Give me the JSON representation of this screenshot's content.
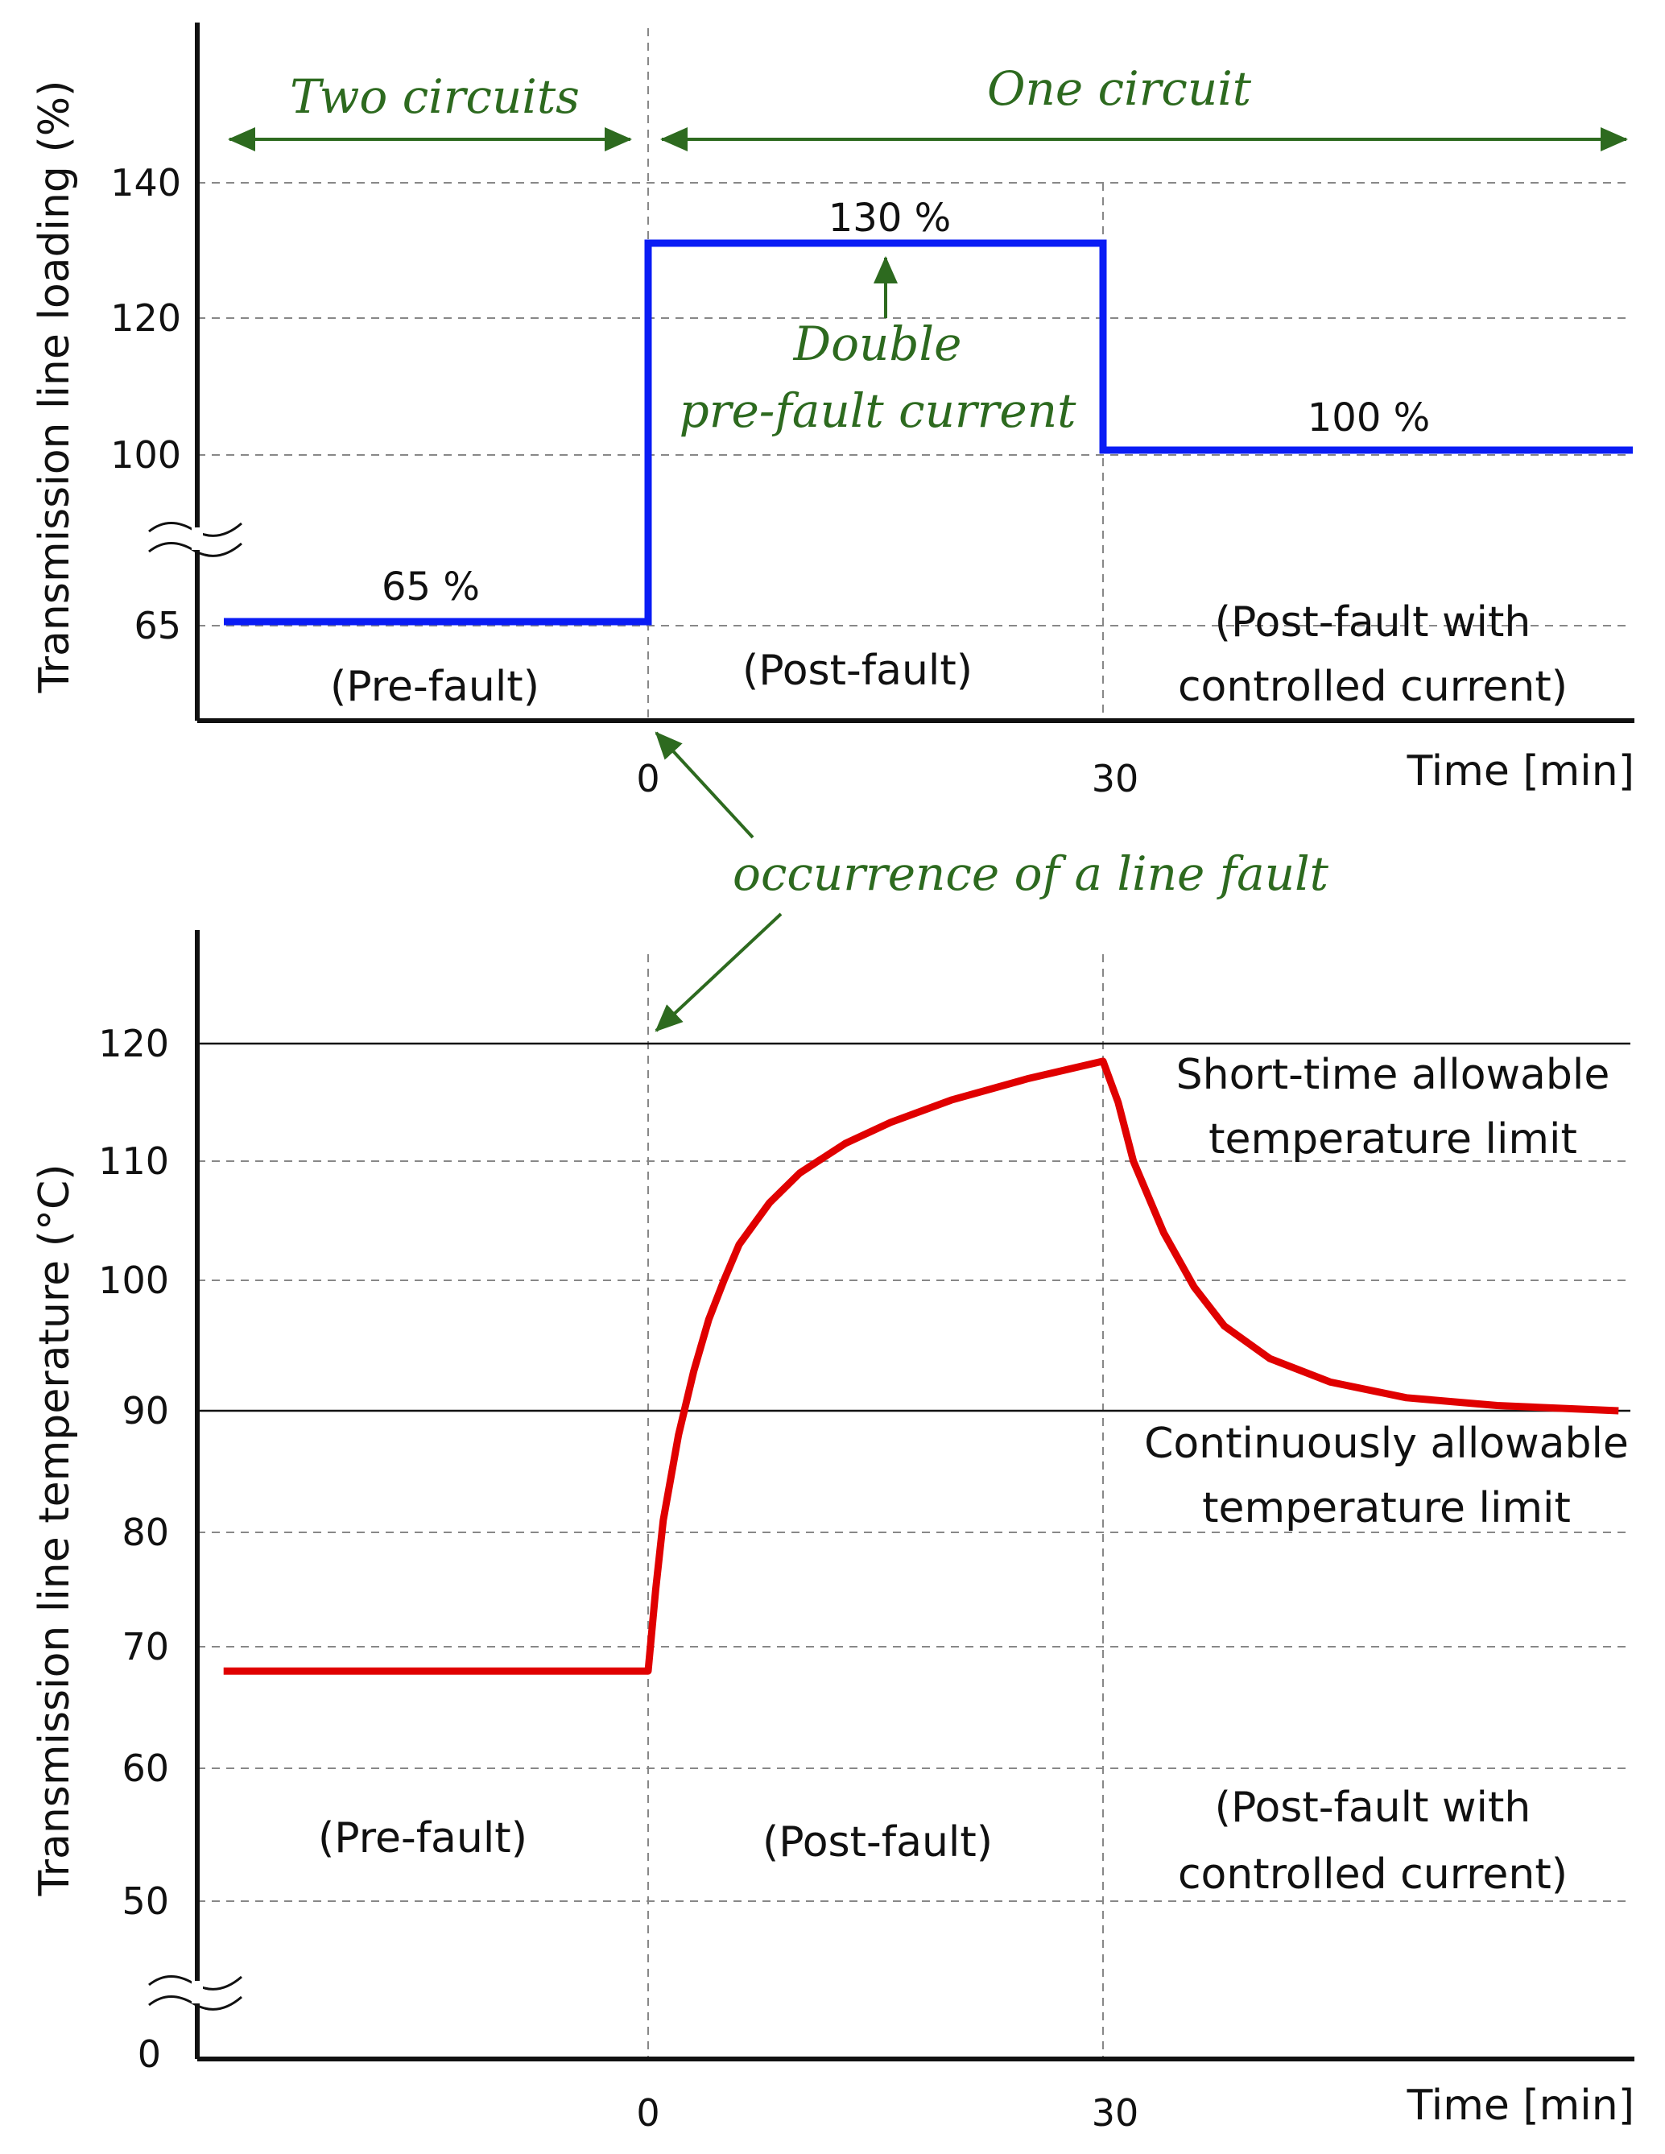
{
  "colors": {
    "loading_line": "#0a1cf5",
    "temperature_line": "#e00000",
    "annotation": "#2d6a1f",
    "grid": "#888888",
    "axis": "#111111"
  },
  "chart_data": [
    {
      "type": "line",
      "title": "",
      "xlabel": "Time [min]",
      "ylabel": "Transmission line loading (%)",
      "x_ticks": [
        "0",
        "30"
      ],
      "y_ticks": [
        "65",
        "100",
        "120",
        "140"
      ],
      "axis_break": "between 65 and 100",
      "series": [
        {
          "name": "Transmission line loading",
          "points": [
            [
              -28,
              65
            ],
            [
              0,
              65
            ],
            [
              0,
              130
            ],
            [
              30,
              130
            ],
            [
              30,
              100
            ],
            [
              65,
              100
            ]
          ]
        }
      ],
      "value_labels": [
        "65 %",
        "130 %",
        "100 %"
      ],
      "phase_labels": [
        "(Pre-fault)",
        "(Post-fault)",
        "(Post-fault with",
        "controlled current)"
      ],
      "annotations": {
        "two_circuits": "Two circuits",
        "one_circuit": "One circuit",
        "double_line1": "Double",
        "double_line2": "pre-fault current"
      }
    },
    {
      "type": "line",
      "title": "",
      "xlabel": "Time [min]",
      "ylabel": "Transmission line temperature (°C)",
      "x_ticks": [
        "0",
        "30"
      ],
      "y_ticks": [
        "0",
        "50",
        "60",
        "70",
        "80",
        "90",
        "100",
        "110",
        "120"
      ],
      "axis_break": "between 0 and 50",
      "series": [
        {
          "name": "Transmission line temperature",
          "points": [
            [
              -28,
              68
            ],
            [
              0,
              68
            ],
            [
              0.5,
              75
            ],
            [
              1,
              81
            ],
            [
              2,
              88
            ],
            [
              3,
              93
            ],
            [
              4,
              97
            ],
            [
              5,
              100
            ],
            [
              6,
              103
            ],
            [
              8,
              106.5
            ],
            [
              10,
              109
            ],
            [
              13,
              111.5
            ],
            [
              16,
              113.3
            ],
            [
              20,
              115.2
            ],
            [
              25,
              117
            ],
            [
              30,
              118.5
            ],
            [
              31,
              115
            ],
            [
              32,
              110
            ],
            [
              34,
              104
            ],
            [
              36,
              99.5
            ],
            [
              38,
              96.5
            ],
            [
              41,
              94
            ],
            [
              45,
              92.2
            ],
            [
              50,
              91
            ],
            [
              56,
              90.4
            ],
            [
              64,
              90
            ]
          ]
        }
      ],
      "limit_lines": [
        {
          "value": 120,
          "label_line1": "Short-time allowable",
          "label_line2": "temperature limit"
        },
        {
          "value": 90,
          "label_line1": "Continuously allowable",
          "label_line2": "temperature limit"
        }
      ],
      "phase_labels": [
        "(Pre-fault)",
        "(Post-fault)",
        "(Post-fault with",
        "controlled current)"
      ]
    }
  ],
  "fault_annotation": "occurrence of a line fault"
}
